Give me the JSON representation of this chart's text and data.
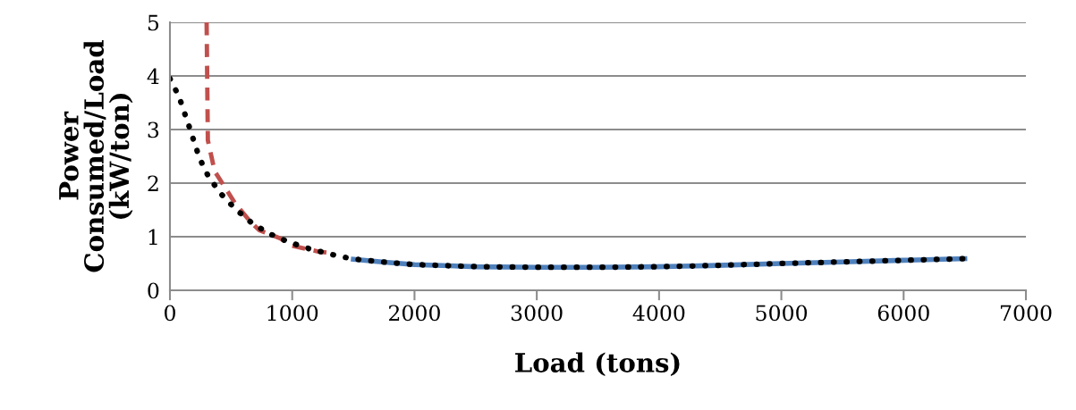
{
  "chart_data": {
    "type": "line",
    "xlabel": "Load (tons)",
    "ylabel": "Power\nConsumed/Load\n(kW/ton)",
    "xlim": [
      0,
      7000
    ],
    "xticks": [
      0,
      1000,
      2000,
      3000,
      4000,
      5000,
      6000,
      7000
    ],
    "ylim": [
      0,
      5
    ],
    "yticks": [
      0,
      1,
      2,
      3,
      4,
      5
    ],
    "grid": "y",
    "legend": false,
    "series": [
      {
        "color": "#4f81bd",
        "line_style": "solid",
        "x": [
          1500,
          1734,
          2000,
          2510,
          3000,
          3490,
          3972,
          4411,
          5000,
          5500,
          6000,
          6500
        ],
        "values": [
          0.58,
          0.53,
          0.48,
          0.44,
          0.43,
          0.43,
          0.44,
          0.46,
          0.5,
          0.53,
          0.56,
          0.59
        ]
      },
      {
        "color": "#c0504d",
        "line_style": "dashed",
        "x": [
          300,
          310,
          366,
          534,
          658,
          731,
          900,
          1000,
          1220,
          1300
        ],
        "values": [
          5,
          2.8,
          2.22,
          1.62,
          1.28,
          1.12,
          0.97,
          0.83,
          0.72,
          0.7
        ]
      },
      {
        "color": "#000000",
        "line_style": "dotted",
        "x": [
          0,
          73,
          161,
          241,
          315,
          417,
          534,
          673,
          819,
          973,
          1134,
          1390,
          1558,
          1734,
          2000,
          2510,
          3000,
          3490,
          3972,
          4411,
          5000,
          5500,
          6000,
          6500
        ],
        "values": [
          3.95,
          3.62,
          3.03,
          2.47,
          2.12,
          1.8,
          1.52,
          1.25,
          1.05,
          0.9,
          0.78,
          0.63,
          0.57,
          0.53,
          0.48,
          0.44,
          0.43,
          0.43,
          0.44,
          0.46,
          0.5,
          0.53,
          0.56,
          0.59
        ]
      }
    ]
  }
}
